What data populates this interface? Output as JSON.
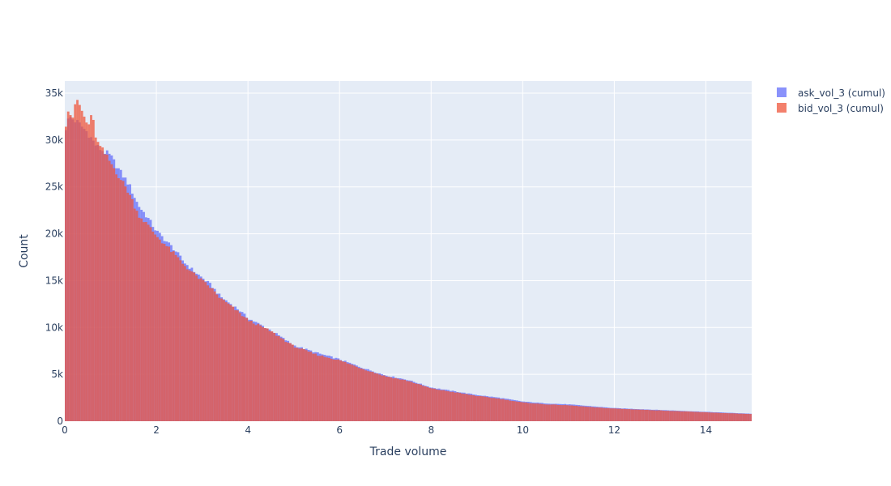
{
  "chart_data": {
    "type": "bar",
    "title": "",
    "xlabel": "Trade volume",
    "ylabel": "Count",
    "xlim": [
      0,
      15
    ],
    "ylim": [
      0,
      36300
    ],
    "x_ticks": [
      0,
      2,
      4,
      6,
      8,
      10,
      12,
      14
    ],
    "x_tick_labels": [
      "0",
      "2",
      "4",
      "6",
      "8",
      "10",
      "12",
      "14"
    ],
    "y_ticks": [
      0,
      5000,
      10000,
      15000,
      20000,
      25000,
      30000,
      35000
    ],
    "y_tick_labels": [
      "0",
      "5k",
      "10k",
      "15k",
      "20k",
      "25k",
      "30k",
      "35k"
    ],
    "grid": true,
    "barmode": "overlay",
    "legend_position": "top-right",
    "bin_width": 0.05,
    "series": [
      {
        "name": "ask_vol_3 (cumul)",
        "color": "#636efa",
        "curve_points": [
          [
            0.025,
            31300
          ],
          [
            0.1,
            32500
          ],
          [
            0.3,
            31800
          ],
          [
            0.5,
            30800
          ],
          [
            0.7,
            29300
          ],
          [
            1.0,
            28300
          ],
          [
            1.2,
            26700
          ],
          [
            1.4,
            25300
          ],
          [
            1.6,
            23100
          ],
          [
            1.8,
            21800
          ],
          [
            2.0,
            20300
          ],
          [
            2.2,
            19300
          ],
          [
            2.4,
            18300
          ],
          [
            2.6,
            17000
          ],
          [
            2.8,
            16100
          ],
          [
            3.0,
            15300
          ],
          [
            3.2,
            14500
          ],
          [
            3.4,
            13300
          ],
          [
            3.6,
            12600
          ],
          [
            3.8,
            11900
          ],
          [
            4.0,
            11000
          ],
          [
            4.5,
            9700
          ],
          [
            5.0,
            8100
          ],
          [
            5.5,
            7300
          ],
          [
            6.0,
            6600
          ],
          [
            6.5,
            5700
          ],
          [
            7.0,
            4900
          ],
          [
            7.5,
            4400
          ],
          [
            8.0,
            3600
          ],
          [
            8.5,
            3200
          ],
          [
            9.0,
            2800
          ],
          [
            9.5,
            2500
          ],
          [
            10.0,
            2100
          ],
          [
            10.5,
            1900
          ],
          [
            11.0,
            1800
          ],
          [
            11.5,
            1600
          ],
          [
            12.0,
            1400
          ],
          [
            12.5,
            1300
          ],
          [
            13.0,
            1200
          ],
          [
            13.5,
            1100
          ],
          [
            14.0,
            1000
          ],
          [
            14.5,
            900
          ],
          [
            15.0,
            800
          ]
        ]
      },
      {
        "name": "bid_vol_3 (cumul)",
        "color": "#ef553b",
        "curve_points": [
          [
            0.025,
            31800
          ],
          [
            0.05,
            33900
          ],
          [
            0.1,
            32900
          ],
          [
            0.2,
            32400
          ],
          [
            0.25,
            34500
          ],
          [
            0.3,
            34000
          ],
          [
            0.5,
            31500
          ],
          [
            0.6,
            32600
          ],
          [
            0.7,
            29800
          ],
          [
            1.0,
            27600
          ],
          [
            1.2,
            26000
          ],
          [
            1.4,
            24400
          ],
          [
            1.6,
            22100
          ],
          [
            1.8,
            21000
          ],
          [
            2.0,
            19800
          ],
          [
            2.2,
            18800
          ],
          [
            2.4,
            17800
          ],
          [
            2.6,
            16700
          ],
          [
            2.8,
            15800
          ],
          [
            3.0,
            15000
          ],
          [
            3.2,
            14200
          ],
          [
            3.4,
            13100
          ],
          [
            3.6,
            12400
          ],
          [
            3.8,
            11600
          ],
          [
            4.0,
            10800
          ],
          [
            4.5,
            9600
          ],
          [
            5.0,
            8000
          ],
          [
            5.5,
            7100
          ],
          [
            6.0,
            6500
          ],
          [
            6.5,
            5600
          ],
          [
            7.0,
            4800
          ],
          [
            7.5,
            4300
          ],
          [
            8.0,
            3500
          ],
          [
            8.5,
            3100
          ],
          [
            9.0,
            2700
          ],
          [
            9.5,
            2400
          ],
          [
            10.0,
            2000
          ],
          [
            10.5,
            1800
          ],
          [
            11.0,
            1700
          ],
          [
            11.5,
            1500
          ],
          [
            12.0,
            1350
          ],
          [
            12.5,
            1250
          ],
          [
            13.0,
            1150
          ],
          [
            13.5,
            1050
          ],
          [
            14.0,
            950
          ],
          [
            14.5,
            850
          ],
          [
            15.0,
            760
          ]
        ]
      }
    ]
  }
}
